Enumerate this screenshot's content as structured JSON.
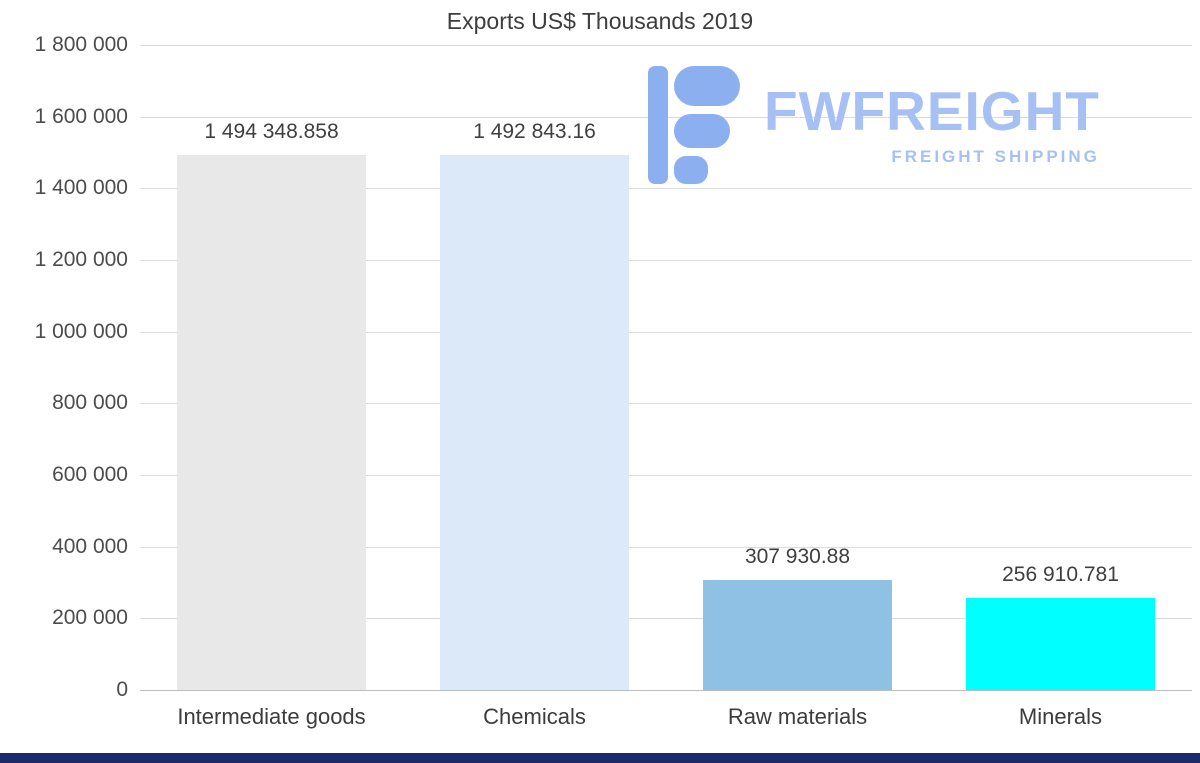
{
  "chart_data": {
    "type": "bar",
    "title": "Exports US$ Thousands 2019",
    "categories": [
      "Intermediate goods",
      "Chemicals",
      "Raw materials",
      "Minerals"
    ],
    "values": [
      1494348.858,
      1492843.16,
      307930.88,
      256910.781
    ],
    "value_labels": [
      "1 494 348.858",
      "1 492 843.16",
      "307 930.88",
      "256 910.781"
    ],
    "bar_colors": [
      "#e8e8e8",
      "#dbe9f8",
      "#8fc1e4",
      "#00ffff"
    ],
    "ylim": [
      0,
      1800000
    ],
    "y_tick_labels": [
      "1 800 000",
      "1 600 000",
      "1 400 000",
      "1 200 000",
      "1 000 000",
      "800 000",
      "600 000",
      "400 000",
      "200 000",
      "0"
    ],
    "grid": true,
    "legend": false,
    "xlabel": "",
    "ylabel": ""
  },
  "watermark": {
    "icon": "fwfreight-logo-icon",
    "brand": "FWFREIGHT",
    "tagline": "FREIGHT SHIPPING",
    "color": "#a6c0f3",
    "icon_color": "#8caff0"
  },
  "footer_bar": {
    "color": "#1b2a68"
  },
  "colors": {
    "grid": "#dcdcdc",
    "axis_text": "#4c4c4c",
    "title_text": "#3d3d3d",
    "background": "#ffffff"
  }
}
